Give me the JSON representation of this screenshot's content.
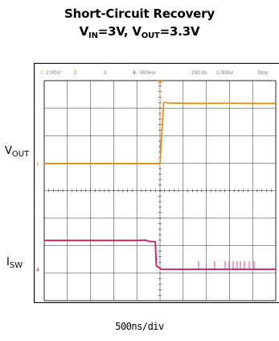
{
  "title": {
    "line1": "Short-Circuit Recovery",
    "line2_parts": [
      "V",
      "IN",
      "=3V, V",
      "OUT",
      "=3.3V"
    ]
  },
  "labels": {
    "vout_main": "V",
    "vout_sub": "OUT",
    "isw_main": "I",
    "isw_sub": "SW",
    "timebase": "500ns/div"
  },
  "scope_header": {
    "ch1": "1",
    "ch1_scale": "2.00V/",
    "ch2": "2",
    "ch3": "3",
    "ch4": "4",
    "time_scale": "500ns/",
    "position": "200.0s",
    "sample": "1.000s/",
    "state": "Stop"
  },
  "markers": {
    "ch1": "1",
    "ch4": "4"
  },
  "colors": {
    "vout": "#e8901c",
    "isw": "#cc1a5e",
    "grid": "#2a2a2a",
    "frame": "#000000",
    "trigger": "#e8901c"
  },
  "chart_data": {
    "type": "line",
    "xlabel": "500ns/div",
    "xlim": [
      -2500,
      2500
    ],
    "grid": true,
    "series": [
      {
        "name": "VOUT",
        "x": [
          -2500,
          0,
          80,
          200,
          800,
          1400,
          2000,
          2500
        ],
        "values": [
          0,
          0,
          3.3,
          3.27,
          3.25,
          3.26,
          3.25,
          3.25
        ]
      },
      {
        "name": "ISW",
        "x": [
          -2500,
          -500,
          -300,
          -250,
          -100,
          -80,
          0,
          20,
          2500
        ],
        "values": [
          1.7,
          1.7,
          1.72,
          1.65,
          1.62,
          0.2,
          0.05,
          0,
          0
        ]
      }
    ]
  }
}
